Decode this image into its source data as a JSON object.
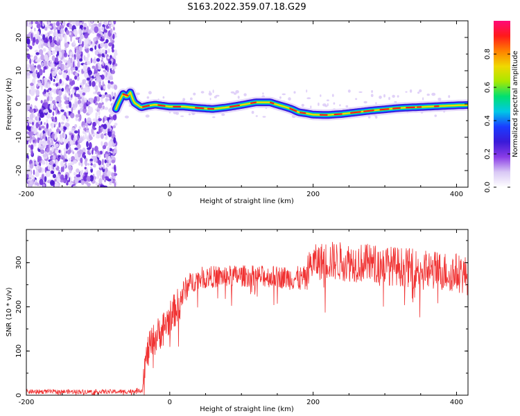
{
  "title": "S163.2022.359.07.18.G29",
  "chart_data": [
    {
      "type": "heatmap",
      "xlabel": "Height of straight line (km)",
      "ylabel": "Frequency (Hz)",
      "xlim": [
        -200,
        416
      ],
      "ylim": [
        -25,
        25
      ],
      "xticks": [
        "-200",
        "0",
        "200",
        "400"
      ],
      "yticks": [
        "-20",
        "-10",
        "0",
        "10",
        "20"
      ],
      "colorbar": {
        "label": "Normalized spectral amplitude",
        "range": [
          0,
          1
        ],
        "ticks": [
          "0.0",
          "0.2",
          "0.4",
          "0.6",
          "0.8"
        ],
        "colormap": [
          "#ffffff",
          "#d9c8f5",
          "#8a3ce6",
          "#3a1ad8",
          "#1a3cff",
          "#00c8e6",
          "#00e070",
          "#a8e800",
          "#f0d800",
          "#ff8000",
          "#ff1a1a",
          "#ff0a78"
        ]
      },
      "noise_region_x": [
        -200,
        -75
      ],
      "ridge": {
        "x": [
          -75,
          -70,
          -65,
          -60,
          -55,
          -50,
          -40,
          -30,
          -20,
          -10,
          0,
          20,
          40,
          60,
          80,
          100,
          120,
          140,
          150,
          160,
          170,
          180,
          190,
          200,
          220,
          240,
          260,
          280,
          300,
          320,
          340,
          360,
          380,
          400,
          416
        ],
        "y": [
          -1.5,
          1.0,
          3.0,
          2.0,
          3.5,
          0.5,
          -1.0,
          -0.5,
          -0.2,
          -0.5,
          -0.8,
          -0.8,
          -1.2,
          -1.5,
          -1.0,
          -0.3,
          0.5,
          0.5,
          -0.2,
          -0.8,
          -1.5,
          -2.5,
          -2.8,
          -3.2,
          -3.3,
          -3.0,
          -2.5,
          -2.0,
          -1.6,
          -1.2,
          -1.0,
          -0.8,
          -0.6,
          -0.4,
          -0.3
        ]
      },
      "grid": false
    },
    {
      "type": "line",
      "xlabel": "Height of straight line (km)",
      "ylabel": "SNR (10 * v/v)",
      "xlim": [
        -200,
        416
      ],
      "ylim": [
        0,
        375
      ],
      "xticks": [
        "-200",
        "0",
        "200",
        "400"
      ],
      "yticks": [
        "0",
        "100",
        "200",
        "300"
      ],
      "color": "#f03232",
      "envelope": {
        "x": [
          -200,
          -60,
          -38,
          -36,
          -30,
          -20,
          -10,
          0,
          10,
          20,
          30,
          40,
          60,
          100,
          150,
          190,
          192,
          200,
          220,
          260,
          300,
          350,
          400,
          416
        ],
        "mid": [
          8,
          8,
          12,
          60,
          100,
          130,
          150,
          175,
          200,
          235,
          255,
          265,
          268,
          270,
          268,
          262,
          285,
          300,
          305,
          300,
          295,
          285,
          278,
          270
        ],
        "amp": [
          5,
          5,
          6,
          30,
          40,
          40,
          40,
          40,
          40,
          30,
          25,
          25,
          25,
          25,
          25,
          30,
          35,
          40,
          45,
          45,
          45,
          45,
          45,
          45
        ]
      },
      "grid": false
    }
  ]
}
